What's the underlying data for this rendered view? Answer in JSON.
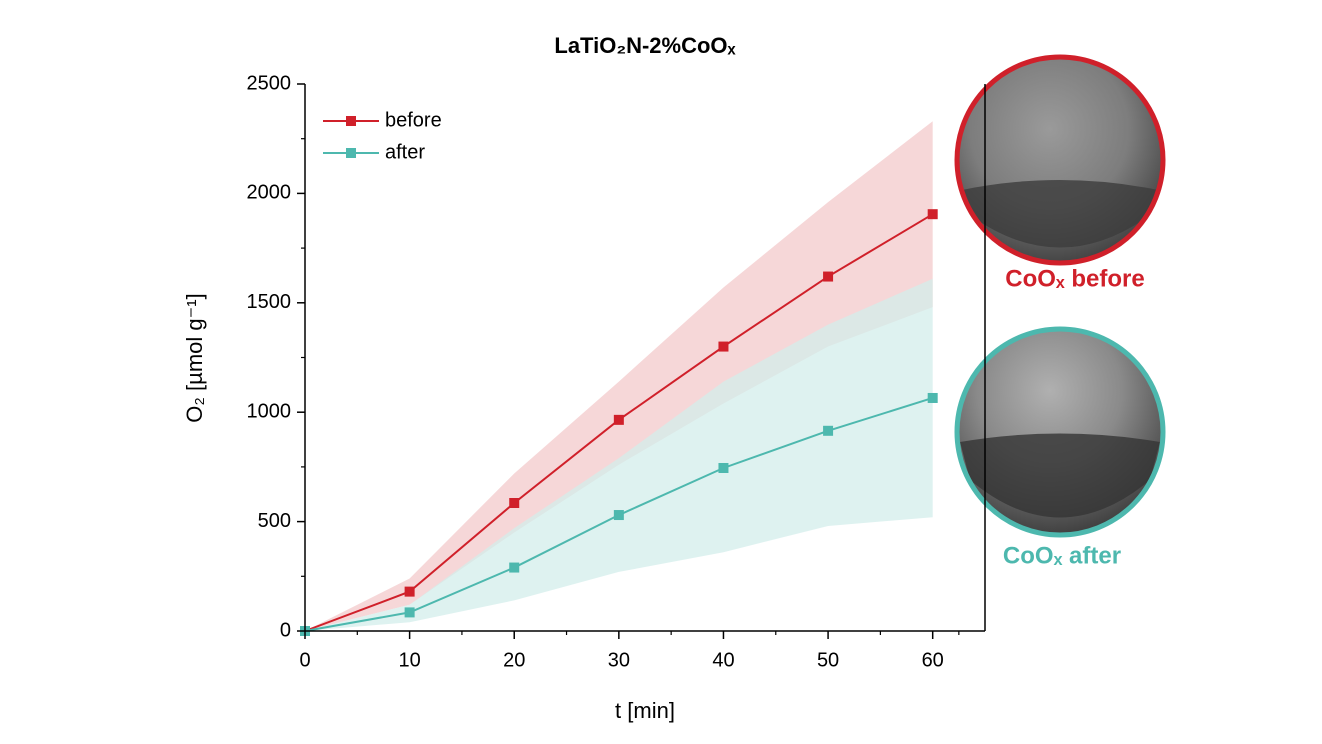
{
  "chart_data": {
    "type": "line",
    "title": "LaTiO₂N-2%CoOₓ",
    "x_label": "t [min]",
    "y_label": "O₂ [µmol g⁻¹]",
    "x": [
      0,
      10,
      20,
      30,
      40,
      50,
      60
    ],
    "xlim": [
      0,
      65
    ],
    "xticks": [
      0,
      10,
      20,
      30,
      40,
      50,
      60
    ],
    "ylim": [
      0,
      2500
    ],
    "yticks": [
      0,
      500,
      1000,
      1500,
      2000,
      2500
    ],
    "legend": "top-left",
    "series": [
      {
        "name": "before",
        "color": "#d0202a",
        "band_color": "#f3c9cb",
        "values": [
          0,
          180,
          585,
          965,
          1300,
          1620,
          1905
        ],
        "upper": [
          0,
          240,
          720,
          1140,
          1570,
          1960,
          2330
        ],
        "lower": [
          0,
          120,
          450,
          760,
          1040,
          1300,
          1480
        ]
      },
      {
        "name": "after",
        "color": "#4db8ae",
        "band_color": "#d3eeeb",
        "values": [
          0,
          85,
          290,
          530,
          745,
          915,
          1065
        ],
        "upper": [
          0,
          120,
          470,
          790,
          1140,
          1400,
          1610
        ],
        "lower": [
          0,
          40,
          140,
          270,
          360,
          480,
          520
        ]
      }
    ],
    "insets": [
      {
        "label": "CoOₓ before",
        "color": "#d0202a"
      },
      {
        "label": "CoOₓ after",
        "color": "#4db8ae"
      }
    ]
  }
}
